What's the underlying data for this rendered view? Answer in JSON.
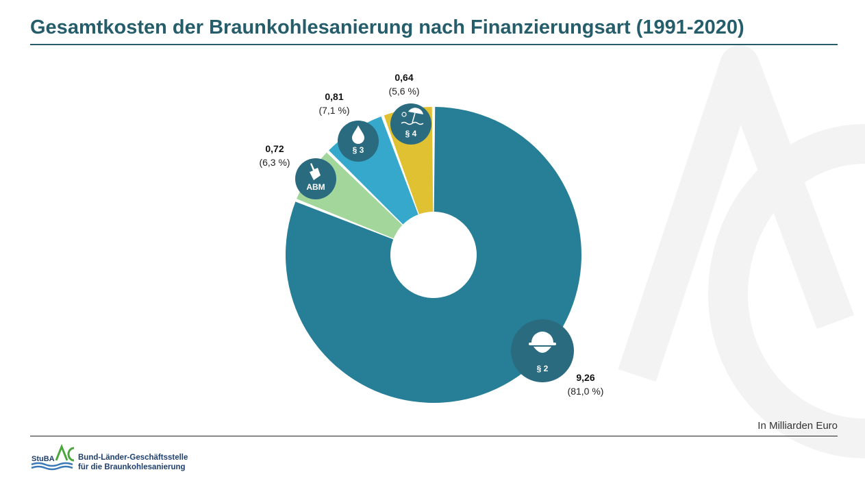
{
  "page": {
    "title": "Gesamtkosten der Braunkohlesanierung nach Finanzierungsart (1991-2020)",
    "unit_note": "In Milliarden Euro"
  },
  "chart_data": {
    "type": "pie",
    "variant": "donut",
    "slices": [
      {
        "value": 9.26,
        "value_label": "9,26",
        "percent_label": "(81,0 %)",
        "badge": "§ 2",
        "icon": "hardhat-icon",
        "color": "#277f97"
      },
      {
        "value": 0.72,
        "value_label": "0,72",
        "percent_label": "(6,3 %)",
        "badge": "ABM",
        "icon": "shovel-icon",
        "color": "#a3d69b"
      },
      {
        "value": 0.81,
        "value_label": "0,81",
        "percent_label": "(7,1 %)",
        "badge": "§ 3",
        "icon": "water-drop-icon",
        "color": "#35a8cb"
      },
      {
        "value": 0.64,
        "value_label": "0,64",
        "percent_label": "(5,6 %)",
        "badge": "§ 4",
        "icon": "beach-umbrella-icon",
        "color": "#e0c131"
      }
    ],
    "badge_color": "#2a6b80"
  },
  "footer": {
    "logo_abbr": "StuBA",
    "logo_line1": "Bund-Länder-Geschäftsstelle",
    "logo_line2": "für die Braunkohlesanierung"
  }
}
